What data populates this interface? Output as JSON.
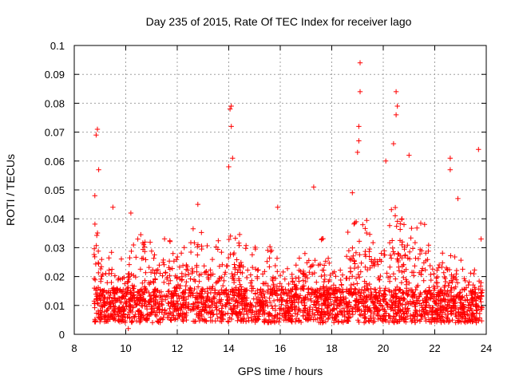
{
  "chart_data": {
    "type": "scatter",
    "title": "Day 235 of 2015, Rate Of TEC Index for receiver lago",
    "xlabel": "GPS time / hours",
    "ylabel": "ROTI / TECUs",
    "xlim": [
      8,
      24
    ],
    "ylim": [
      0,
      0.1
    ],
    "x_ticks": [
      "8",
      "10",
      "12",
      "14",
      "16",
      "18",
      "20",
      "22",
      "24"
    ],
    "y_ticks": [
      "0",
      "0.01",
      "0.02",
      "0.03",
      "0.04",
      "0.05",
      "0.06",
      "0.07",
      "0.08",
      "0.09",
      "0.1"
    ],
    "grid": true,
    "marker": "plus",
    "color": "#ff0000",
    "notable_points": [
      {
        "x": 8.85,
        "y": 0.069
      },
      {
        "x": 8.9,
        "y": 0.071
      },
      {
        "x": 8.95,
        "y": 0.057
      },
      {
        "x": 8.8,
        "y": 0.048
      },
      {
        "x": 9.5,
        "y": 0.044
      },
      {
        "x": 10.2,
        "y": 0.042
      },
      {
        "x": 10.1,
        "y": 0.002
      },
      {
        "x": 14.05,
        "y": 0.078
      },
      {
        "x": 14.1,
        "y": 0.079
      },
      {
        "x": 14.1,
        "y": 0.072
      },
      {
        "x": 14.15,
        "y": 0.061
      },
      {
        "x": 14.0,
        "y": 0.058
      },
      {
        "x": 19.1,
        "y": 0.094
      },
      {
        "x": 19.1,
        "y": 0.084
      },
      {
        "x": 19.05,
        "y": 0.072
      },
      {
        "x": 19.05,
        "y": 0.067
      },
      {
        "x": 19.0,
        "y": 0.063
      },
      {
        "x": 20.5,
        "y": 0.084
      },
      {
        "x": 20.55,
        "y": 0.079
      },
      {
        "x": 20.5,
        "y": 0.076
      },
      {
        "x": 20.4,
        "y": 0.066
      },
      {
        "x": 21.0,
        "y": 0.062
      },
      {
        "x": 20.1,
        "y": 0.06
      },
      {
        "x": 22.6,
        "y": 0.061
      },
      {
        "x": 22.6,
        "y": 0.057
      },
      {
        "x": 22.9,
        "y": 0.047
      },
      {
        "x": 23.7,
        "y": 0.064
      },
      {
        "x": 23.8,
        "y": 0.033
      },
      {
        "x": 17.3,
        "y": 0.051
      },
      {
        "x": 12.8,
        "y": 0.045
      },
      {
        "x": 15.9,
        "y": 0.044
      },
      {
        "x": 18.8,
        "y": 0.049
      }
    ],
    "activity_envelope": [
      {
        "x": 8.8,
        "y": 0.04
      },
      {
        "x": 9.2,
        "y": 0.03
      },
      {
        "x": 9.6,
        "y": 0.028
      },
      {
        "x": 10.0,
        "y": 0.025
      },
      {
        "x": 10.4,
        "y": 0.036
      },
      {
        "x": 10.8,
        "y": 0.034
      },
      {
        "x": 11.2,
        "y": 0.032
      },
      {
        "x": 11.6,
        "y": 0.035
      },
      {
        "x": 12.0,
        "y": 0.028
      },
      {
        "x": 12.4,
        "y": 0.033
      },
      {
        "x": 12.8,
        "y": 0.04
      },
      {
        "x": 13.2,
        "y": 0.03
      },
      {
        "x": 13.6,
        "y": 0.034
      },
      {
        "x": 14.0,
        "y": 0.04
      },
      {
        "x": 14.4,
        "y": 0.036
      },
      {
        "x": 14.8,
        "y": 0.033
      },
      {
        "x": 15.2,
        "y": 0.03
      },
      {
        "x": 15.6,
        "y": 0.032
      },
      {
        "x": 16.0,
        "y": 0.028
      },
      {
        "x": 16.4,
        "y": 0.022
      },
      {
        "x": 16.8,
        "y": 0.03
      },
      {
        "x": 17.2,
        "y": 0.04
      },
      {
        "x": 17.6,
        "y": 0.038
      },
      {
        "x": 18.0,
        "y": 0.022
      },
      {
        "x": 18.4,
        "y": 0.03
      },
      {
        "x": 18.8,
        "y": 0.04
      },
      {
        "x": 19.2,
        "y": 0.042
      },
      {
        "x": 19.6,
        "y": 0.036
      },
      {
        "x": 20.0,
        "y": 0.04
      },
      {
        "x": 20.4,
        "y": 0.045
      },
      {
        "x": 20.8,
        "y": 0.04
      },
      {
        "x": 21.2,
        "y": 0.036
      },
      {
        "x": 21.6,
        "y": 0.04
      },
      {
        "x": 22.0,
        "y": 0.034
      },
      {
        "x": 22.4,
        "y": 0.03
      },
      {
        "x": 22.8,
        "y": 0.028
      },
      {
        "x": 23.2,
        "y": 0.025
      },
      {
        "x": 23.6,
        "y": 0.022
      }
    ],
    "scatter_x_range": [
      8.75,
      23.85
    ]
  }
}
